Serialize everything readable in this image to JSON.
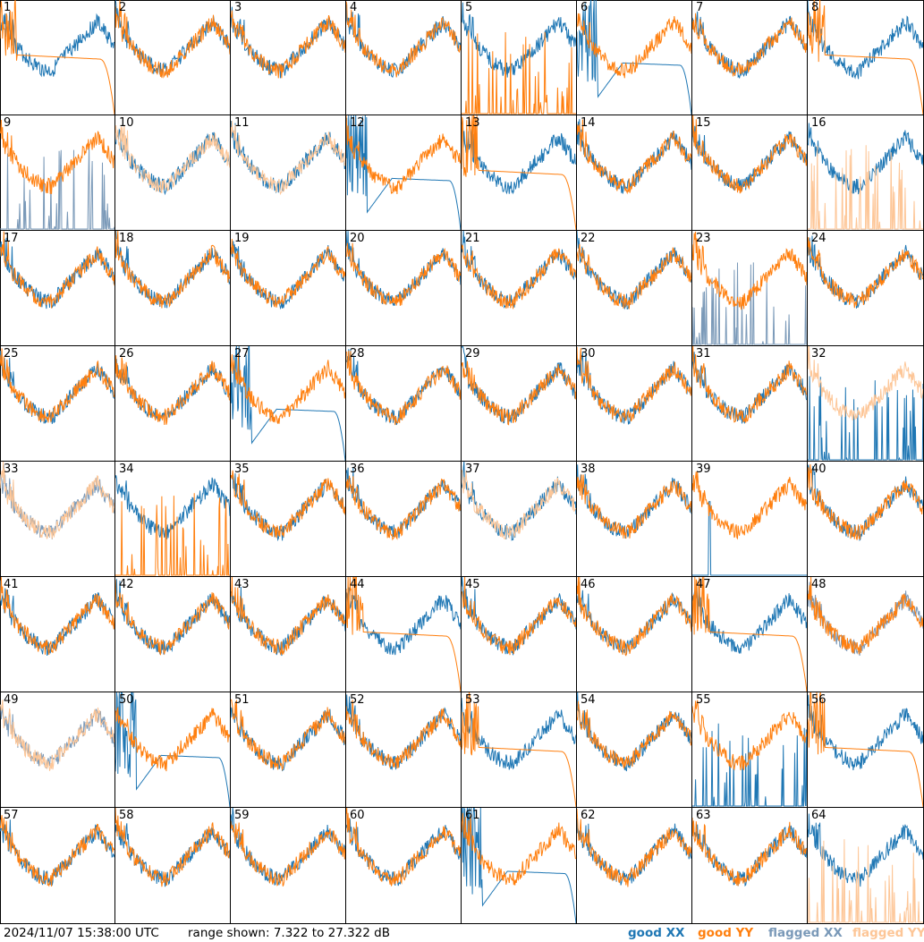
{
  "timestamp": "2024/11/07 15:38:00 UTC",
  "range_text": "range shown: 7.322 to 27.322 dB",
  "legend": [
    {
      "word": "good",
      "pol": "XX",
      "color": "#1f77b4"
    },
    {
      "word": "good",
      "pol": "YY",
      "color": "#ff7f0e"
    },
    {
      "word": "flagged",
      "pol": "XX",
      "color": "#7a99b8"
    },
    {
      "word": "flagged",
      "pol": "YY",
      "color": "#fdc697"
    }
  ],
  "chart_data": {
    "type": "line",
    "grid": "8x8 small multiples",
    "ylim": [
      7.322,
      27.322
    ],
    "yunit": "dB",
    "series_names": [
      "good XX",
      "good YY",
      "flagged XX",
      "flagged YY"
    ],
    "panels": [
      {
        "id": "1",
        "xx": "good",
        "yy": "good",
        "style": "dropout-yy"
      },
      {
        "id": "2",
        "xx": "good",
        "yy": "good",
        "style": "normal"
      },
      {
        "id": "3",
        "xx": "good",
        "yy": "good",
        "style": "normal"
      },
      {
        "id": "4",
        "xx": "good",
        "yy": "good",
        "style": "normal"
      },
      {
        "id": "5",
        "xx": "good",
        "yy": "good",
        "style": "dead-yy"
      },
      {
        "id": "6",
        "xx": "good",
        "yy": "good",
        "style": "dropout-xx"
      },
      {
        "id": "7",
        "xx": "good",
        "yy": "good",
        "style": "normal"
      },
      {
        "id": "8",
        "xx": "good",
        "yy": "good",
        "style": "flat-yy"
      },
      {
        "id": "9",
        "xx": "flagged",
        "yy": "good",
        "style": "dead-xx"
      },
      {
        "id": "10",
        "xx": "good",
        "yy": "flagged",
        "style": "normal"
      },
      {
        "id": "11",
        "xx": "good",
        "yy": "flagged",
        "style": "normal"
      },
      {
        "id": "12",
        "xx": "good",
        "yy": "good",
        "style": "dropout-xx"
      },
      {
        "id": "13",
        "xx": "good",
        "yy": "good",
        "style": "dropout-yy"
      },
      {
        "id": "14",
        "xx": "good",
        "yy": "good",
        "style": "normal"
      },
      {
        "id": "15",
        "xx": "good",
        "yy": "good",
        "style": "normal"
      },
      {
        "id": "16",
        "xx": "good",
        "yy": "flagged",
        "style": "dead-yy"
      },
      {
        "id": "17",
        "xx": "good",
        "yy": "good",
        "style": "normal"
      },
      {
        "id": "18",
        "xx": "good",
        "yy": "good",
        "style": "normal"
      },
      {
        "id": "19",
        "xx": "good",
        "yy": "good",
        "style": "normal"
      },
      {
        "id": "20",
        "xx": "good",
        "yy": "good",
        "style": "normal"
      },
      {
        "id": "21",
        "xx": "good",
        "yy": "good",
        "style": "normal"
      },
      {
        "id": "22",
        "xx": "good",
        "yy": "good",
        "style": "normal"
      },
      {
        "id": "23",
        "xx": "flagged",
        "yy": "good",
        "style": "dead-xx"
      },
      {
        "id": "24",
        "xx": "good",
        "yy": "good",
        "style": "normal"
      },
      {
        "id": "25",
        "xx": "good",
        "yy": "good",
        "style": "normal"
      },
      {
        "id": "26",
        "xx": "good",
        "yy": "good",
        "style": "normal"
      },
      {
        "id": "27",
        "xx": "good",
        "yy": "good",
        "style": "dropout-xx"
      },
      {
        "id": "28",
        "xx": "good",
        "yy": "good",
        "style": "normal"
      },
      {
        "id": "29",
        "xx": "good",
        "yy": "good",
        "style": "normal"
      },
      {
        "id": "30",
        "xx": "good",
        "yy": "good",
        "style": "normal"
      },
      {
        "id": "31",
        "xx": "good",
        "yy": "good",
        "style": "normal"
      },
      {
        "id": "32",
        "xx": "good",
        "yy": "flagged",
        "style": "dead-xx"
      },
      {
        "id": "33",
        "xx": "flagged",
        "yy": "flagged",
        "style": "normal"
      },
      {
        "id": "34",
        "xx": "good",
        "yy": "good",
        "style": "dead-yy"
      },
      {
        "id": "35",
        "xx": "good",
        "yy": "good",
        "style": "normal"
      },
      {
        "id": "36",
        "xx": "good",
        "yy": "good",
        "style": "normal"
      },
      {
        "id": "37",
        "xx": "good",
        "yy": "flagged",
        "style": "normal"
      },
      {
        "id": "38",
        "xx": "good",
        "yy": "good",
        "style": "normal"
      },
      {
        "id": "39",
        "xx": "good",
        "yy": "good",
        "style": "dead-xx"
      },
      {
        "id": "40",
        "xx": "good",
        "yy": "good",
        "style": "normal"
      },
      {
        "id": "41",
        "xx": "good",
        "yy": "good",
        "style": "normal"
      },
      {
        "id": "42",
        "xx": "good",
        "yy": "good",
        "style": "normal"
      },
      {
        "id": "43",
        "xx": "good",
        "yy": "good",
        "style": "normal"
      },
      {
        "id": "44",
        "xx": "good",
        "yy": "good",
        "style": "dropout-yy"
      },
      {
        "id": "45",
        "xx": "good",
        "yy": "good",
        "style": "normal"
      },
      {
        "id": "46",
        "xx": "good",
        "yy": "good",
        "style": "normal"
      },
      {
        "id": "47",
        "xx": "good",
        "yy": "good",
        "style": "dropout-yy"
      },
      {
        "id": "48",
        "xx": "flagged",
        "yy": "good",
        "style": "normal"
      },
      {
        "id": "49",
        "xx": "flagged",
        "yy": "flagged",
        "style": "normal"
      },
      {
        "id": "50",
        "xx": "good",
        "yy": "good",
        "style": "dropout-xx"
      },
      {
        "id": "51",
        "xx": "good",
        "yy": "good",
        "style": "normal"
      },
      {
        "id": "52",
        "xx": "good",
        "yy": "good",
        "style": "normal"
      },
      {
        "id": "53",
        "xx": "good",
        "yy": "good",
        "style": "dropout-yy"
      },
      {
        "id": "54",
        "xx": "good",
        "yy": "good",
        "style": "normal"
      },
      {
        "id": "55",
        "xx": "good",
        "yy": "good",
        "style": "dead-xx"
      },
      {
        "id": "56",
        "xx": "good",
        "yy": "good",
        "style": "flat-yy"
      },
      {
        "id": "57",
        "xx": "good",
        "yy": "good",
        "style": "normal"
      },
      {
        "id": "58",
        "xx": "good",
        "yy": "good",
        "style": "normal"
      },
      {
        "id": "59",
        "xx": "good",
        "yy": "good",
        "style": "normal"
      },
      {
        "id": "60",
        "xx": "good",
        "yy": "good",
        "style": "normal"
      },
      {
        "id": "61",
        "xx": "good",
        "yy": "good",
        "style": "dropout-xx"
      },
      {
        "id": "62",
        "xx": "good",
        "yy": "good",
        "style": "normal"
      },
      {
        "id": "63",
        "xx": "good",
        "yy": "good",
        "style": "normal"
      },
      {
        "id": "64",
        "xx": "good",
        "yy": "flagged",
        "style": "dead-yy"
      }
    ]
  }
}
